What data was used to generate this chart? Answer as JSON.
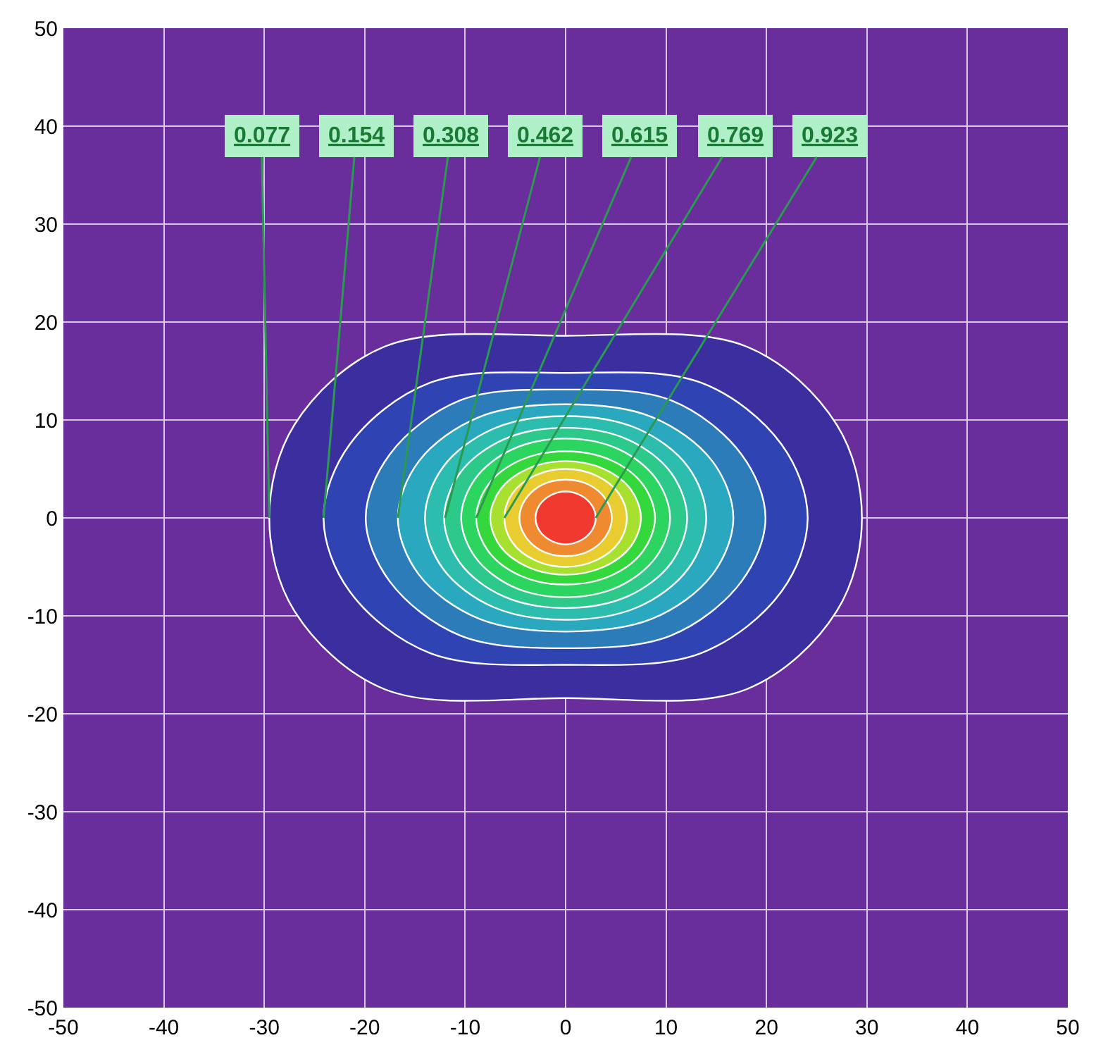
{
  "chart_data": {
    "type": "area",
    "xlim": [
      -50,
      50
    ],
    "ylim": [
      -50,
      50
    ],
    "xticks": [
      -50,
      -40,
      -30,
      -20,
      -10,
      0,
      10,
      20,
      30,
      40,
      50
    ],
    "yticks": [
      -50,
      -40,
      -30,
      -20,
      -10,
      0,
      10,
      20,
      30,
      40,
      50
    ],
    "grid": true,
    "marker": "none",
    "line_style": "solid",
    "series": [
      {
        "color": "#3b2fa0",
        "x": [
          29.5,
          27,
          18,
          0,
          -18,
          -27,
          -29.5,
          -27,
          -18,
          0,
          18,
          27,
          29.5
        ],
        "values": [
          0,
          9.5,
          17.5,
          18.6,
          17.5,
          9.5,
          0,
          -9.5,
          -17.5,
          -18.4,
          -17.5,
          -9.5,
          0
        ]
      },
      {
        "color": "#2f43b2",
        "x": [
          24.1,
          21.5,
          13.5,
          0,
          -13.5,
          -21.5,
          -24.1,
          -21.5,
          -13.5,
          0,
          13.5,
          21.5,
          24.1
        ],
        "values": [
          0,
          7.5,
          13.8,
          14.8,
          13.8,
          7.5,
          0,
          -7.5,
          -13.8,
          -15,
          -13.8,
          -7.5,
          0
        ]
      },
      {
        "color": "#2b7cb8",
        "x": [
          19.9,
          17.5,
          10.5,
          0,
          -10.5,
          -17.5,
          -19.9,
          -17.5,
          -10.5,
          0,
          10.5,
          17.5,
          19.9
        ],
        "values": [
          0,
          6.5,
          12,
          13.1,
          12,
          6.5,
          0,
          -6.5,
          -12,
          -13.3,
          -12,
          -6.5,
          0
        ]
      },
      {
        "color": "#2aa8c0",
        "x": [
          16.7,
          14.6,
          8.6,
          0,
          -8.6,
          -14.6,
          -16.7,
          -14.6,
          -8.6,
          0,
          8.6,
          14.6,
          16.7
        ],
        "values": [
          0,
          5.8,
          10.3,
          11.6,
          10.3,
          5.8,
          0,
          -5.8,
          -10.3,
          -11.6,
          -10.3,
          -5.8,
          0
        ]
      },
      {
        "color": "#2cbdae",
        "x": [
          14,
          12.2,
          7.2,
          0,
          -7.2,
          -12.2,
          -14,
          -12.2,
          -7.2,
          0,
          7.2,
          12.2,
          14
        ],
        "values": [
          0,
          5.2,
          9.1,
          10.4,
          9.1,
          5.2,
          0,
          -5.2,
          -9.1,
          -10.4,
          -9.1,
          -5.2,
          0
        ]
      },
      {
        "color": "#2cc98a",
        "x": [
          12.1,
          10.5,
          6.2,
          0,
          -6.2,
          -10.5,
          -12.1,
          -10.5,
          -6.2,
          0,
          6.2,
          10.5,
          12.1
        ],
        "values": [
          0,
          4.6,
          8,
          9.2,
          8,
          4.6,
          0,
          -4.6,
          -8,
          -9.2,
          -8,
          -4.6,
          0
        ]
      },
      {
        "color": "#2cd460",
        "x": [
          10.4,
          9,
          5.3,
          0,
          -5.3,
          -9,
          -10.4,
          -9,
          -5.3,
          0,
          5.3,
          9,
          10.4
        ],
        "values": [
          0,
          4,
          7,
          8.1,
          7,
          4,
          0,
          -4,
          -7,
          -8.1,
          -7,
          -4,
          0
        ]
      },
      {
        "color": "#34d83c",
        "x": [
          8.9,
          7.7,
          4.5,
          0,
          -4.5,
          -7.7,
          -8.9,
          -7.7,
          -4.5,
          0,
          4.5,
          7.7,
          8.9
        ],
        "values": [
          0,
          3.4,
          5.9,
          6.8,
          5.9,
          3.4,
          0,
          -3.4,
          -5.9,
          -6.8,
          -5.9,
          -3.4,
          0
        ]
      },
      {
        "color": "#a8e030",
        "x": [
          7.5,
          6.5,
          3.8,
          0,
          -3.8,
          -6.5,
          -7.5,
          -6.5,
          -3.8,
          0,
          3.8,
          6.5,
          7.5
        ],
        "values": [
          0,
          2.9,
          5,
          5.8,
          5,
          2.9,
          0,
          -2.9,
          -5,
          -5.8,
          -5,
          -2.9,
          0
        ]
      },
      {
        "color": "#e8cc30",
        "x": [
          6.1,
          5.3,
          3.1,
          0,
          -3.1,
          -5.3,
          -6.1,
          -5.3,
          -3.1,
          0,
          3.1,
          5.3,
          6.1
        ],
        "values": [
          0,
          2.5,
          4.3,
          5,
          4.3,
          2.5,
          0,
          -2.5,
          -4.3,
          -5,
          -4.3,
          -2.5,
          0
        ]
      },
      {
        "color": "#f08a30",
        "x": [
          4.6,
          4,
          2.3,
          0,
          -2.3,
          -4,
          -4.6,
          -4,
          -2.3,
          0,
          2.3,
          4,
          4.6
        ],
        "values": [
          0,
          1.9,
          3.4,
          3.9,
          3.4,
          1.9,
          0,
          -1.9,
          -3.4,
          -3.9,
          -3.4,
          -1.9,
          0
        ]
      },
      {
        "color": "#f03a30",
        "x": [
          3,
          2.6,
          1.5,
          0,
          -1.5,
          -2.6,
          -3,
          -2.6,
          -1.5,
          0,
          1.5,
          2.6,
          3
        ],
        "values": [
          0,
          1.3,
          2.3,
          2.7,
          2.3,
          1.3,
          0,
          -1.3,
          -2.3,
          -2.7,
          -2.3,
          -1.3,
          0
        ]
      }
    ],
    "annotations": [
      {
        "text": "0.077",
        "x": -29.5,
        "y": 0
      },
      {
        "text": "0.154",
        "x": -24.1,
        "y": 0
      },
      {
        "text": "0.308",
        "x": -16.7,
        "y": 0
      },
      {
        "text": "0.462",
        "x": -12,
        "y": 0
      },
      {
        "text": "0.615",
        "x": -8.9,
        "y": 0
      },
      {
        "text": "0.769",
        "x": -6.1,
        "y": 0
      },
      {
        "text": "0.923",
        "x": 3,
        "y": 0
      }
    ]
  }
}
